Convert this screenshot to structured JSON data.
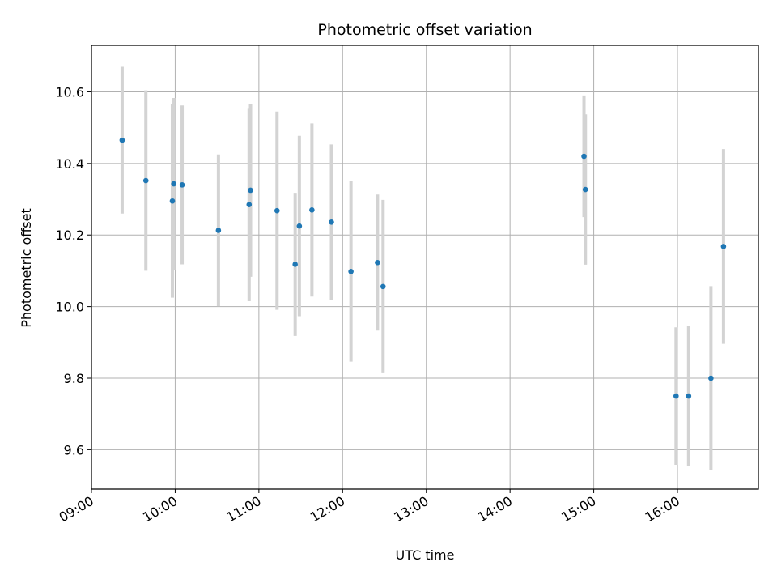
{
  "chart_data": {
    "type": "scatter",
    "title": "Photometric offset variation",
    "xlabel": "UTC time",
    "ylabel": "Photometric offset",
    "x_unit": "UTC time (HH:MM)",
    "xlim": [
      "09:00",
      "16:58"
    ],
    "ylim": [
      9.49,
      10.73
    ],
    "x_ticks": [
      "09:00",
      "10:00",
      "11:00",
      "12:00",
      "13:00",
      "14:00",
      "15:00",
      "16:00"
    ],
    "y_ticks": [
      9.6,
      9.8,
      10.0,
      10.2,
      10.4,
      10.6
    ],
    "y_tick_labels": [
      "9.6",
      "9.8",
      "10.0",
      "10.2",
      "10.4",
      "10.6"
    ],
    "grid": true,
    "legend": "none",
    "colors": {
      "point": "#1f77b4",
      "errorbar": "#d3d3d3",
      "grid": "#b0b0b0"
    },
    "points": [
      {
        "x": "09:22",
        "y": 10.465,
        "yerr": 0.205
      },
      {
        "x": "09:39",
        "y": 10.352,
        "yerr": 0.252
      },
      {
        "x": "09:58",
        "y": 10.295,
        "yerr": 0.27
      },
      {
        "x": "09:59",
        "y": 10.343,
        "yerr": 0.24
      },
      {
        "x": "10:05",
        "y": 10.34,
        "yerr": 0.222
      },
      {
        "x": "10:31",
        "y": 10.213,
        "yerr": 0.212
      },
      {
        "x": "10:53",
        "y": 10.285,
        "yerr": 0.27
      },
      {
        "x": "10:54",
        "y": 10.325,
        "yerr": 0.242
      },
      {
        "x": "11:13",
        "y": 10.268,
        "yerr": 0.277
      },
      {
        "x": "11:26",
        "y": 10.118,
        "yerr": 0.2
      },
      {
        "x": "11:29",
        "y": 10.225,
        "yerr": 0.252
      },
      {
        "x": "11:38",
        "y": 10.27,
        "yerr": 0.242
      },
      {
        "x": "11:52",
        "y": 10.236,
        "yerr": 0.217
      },
      {
        "x": "12:06",
        "y": 10.098,
        "yerr": 0.252
      },
      {
        "x": "12:25",
        "y": 10.123,
        "yerr": 0.19
      },
      {
        "x": "12:29",
        "y": 10.056,
        "yerr": 0.242
      },
      {
        "x": "14:53",
        "y": 10.42,
        "yerr": 0.17
      },
      {
        "x": "14:54",
        "y": 10.327,
        "yerr": 0.21
      },
      {
        "x": "15:59",
        "y": 9.75,
        "yerr": 0.192
      },
      {
        "x": "16:08",
        "y": 9.75,
        "yerr": 0.195
      },
      {
        "x": "16:24",
        "y": 9.8,
        "yerr": 0.257
      },
      {
        "x": "16:33",
        "y": 10.168,
        "yerr": 0.272
      }
    ]
  }
}
